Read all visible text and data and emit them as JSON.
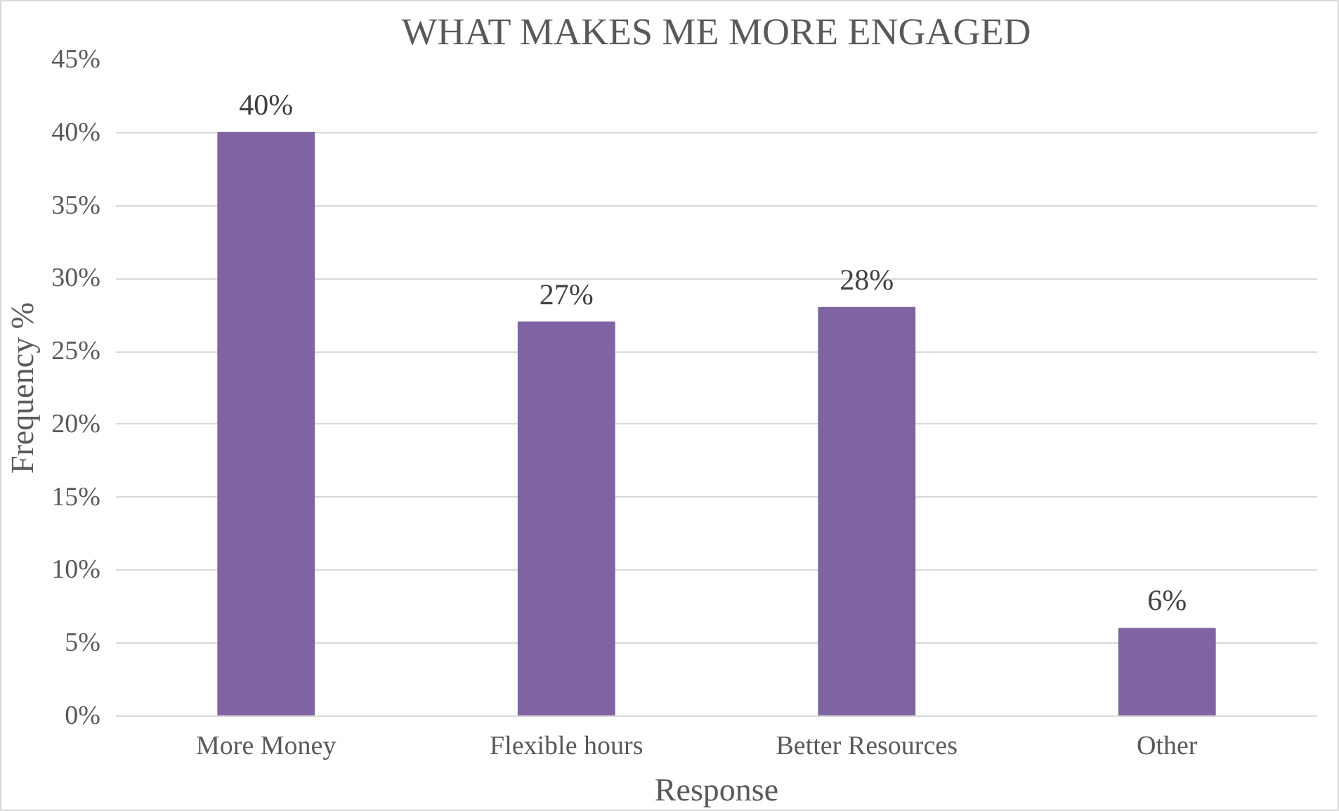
{
  "chart_data": {
    "type": "bar",
    "title": "WHAT MAKES ME MORE ENGAGED",
    "xlabel": "Response",
    "ylabel": "Frequency %",
    "categories": [
      "More Money",
      "Flexible hours",
      "Better Resources",
      "Other"
    ],
    "values": [
      40,
      27,
      28,
      6
    ],
    "color": "#8064a2",
    "value_labels": [
      "40%",
      "27%",
      "28%",
      "6%"
    ],
    "ylim": [
      0,
      45
    ],
    "yticks": [
      {
        "value": 0,
        "label": "0%"
      },
      {
        "value": 5,
        "label": "5%"
      },
      {
        "value": 10,
        "label": "10%"
      },
      {
        "value": 15,
        "label": "15%"
      },
      {
        "value": 20,
        "label": "20%"
      },
      {
        "value": 25,
        "label": "25%"
      },
      {
        "value": 30,
        "label": "30%"
      },
      {
        "value": 35,
        "label": "35%"
      },
      {
        "value": 40,
        "label": "40%"
      },
      {
        "value": 45,
        "label": "45%"
      }
    ],
    "grid": "y"
  }
}
